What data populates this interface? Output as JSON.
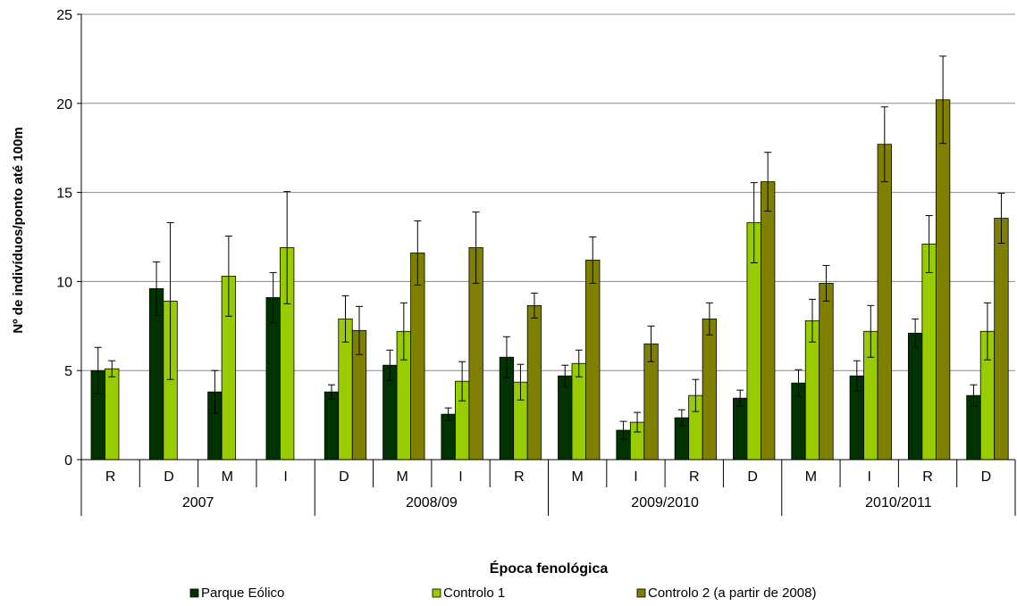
{
  "chart_data": {
    "type": "bar",
    "ylabel": "Nº de indivíduos/ponto até 100m",
    "xlabel": "Época fenológica",
    "ylim": [
      0,
      25
    ],
    "yticks": [
      0,
      5,
      10,
      15,
      20,
      25
    ],
    "grid": true,
    "legend_position": "bottom",
    "groups": [
      {
        "label": "2007",
        "categories": [
          "R",
          "D",
          "M",
          "I"
        ]
      },
      {
        "label": "2008/09",
        "categories": [
          "D",
          "M",
          "I",
          "R"
        ]
      },
      {
        "label": "2009/2010",
        "categories": [
          "M",
          "I",
          "R",
          "D"
        ]
      },
      {
        "label": "2010/2011",
        "categories": [
          "M",
          "I",
          "R",
          "D"
        ]
      }
    ],
    "series": [
      {
        "name": "Parque Eólico",
        "color": "#003300",
        "values": [
          5.0,
          9.6,
          3.8,
          9.1,
          3.8,
          5.3,
          2.55,
          5.75,
          4.7,
          1.65,
          2.35,
          3.45,
          4.3,
          4.7,
          7.1,
          3.6
        ],
        "errors": [
          1.3,
          1.5,
          1.2,
          1.4,
          0.4,
          0.85,
          0.35,
          1.15,
          0.6,
          0.5,
          0.45,
          0.45,
          0.75,
          0.85,
          0.8,
          0.6
        ]
      },
      {
        "name": "Controlo 1",
        "color": "#99cc00",
        "values": [
          5.1,
          8.9,
          10.3,
          11.9,
          7.9,
          7.2,
          4.4,
          4.35,
          5.4,
          2.1,
          3.6,
          13.3,
          7.8,
          7.2,
          12.1,
          7.2
        ],
        "errors": [
          0.45,
          4.4,
          2.25,
          3.15,
          1.3,
          1.6,
          1.1,
          1.0,
          0.75,
          0.55,
          0.9,
          2.25,
          1.2,
          1.45,
          1.6,
          1.6
        ]
      },
      {
        "name": "Controlo 2 (a partir de 2008)",
        "color": "#808000",
        "values": [
          null,
          null,
          null,
          null,
          7.25,
          11.6,
          11.9,
          8.65,
          11.2,
          6.5,
          7.9,
          15.6,
          9.9,
          17.7,
          20.2,
          13.55
        ],
        "errors": [
          null,
          null,
          null,
          null,
          1.35,
          1.8,
          2.0,
          0.7,
          1.3,
          1.0,
          0.9,
          1.65,
          1.0,
          2.1,
          2.45,
          1.4
        ]
      }
    ]
  }
}
